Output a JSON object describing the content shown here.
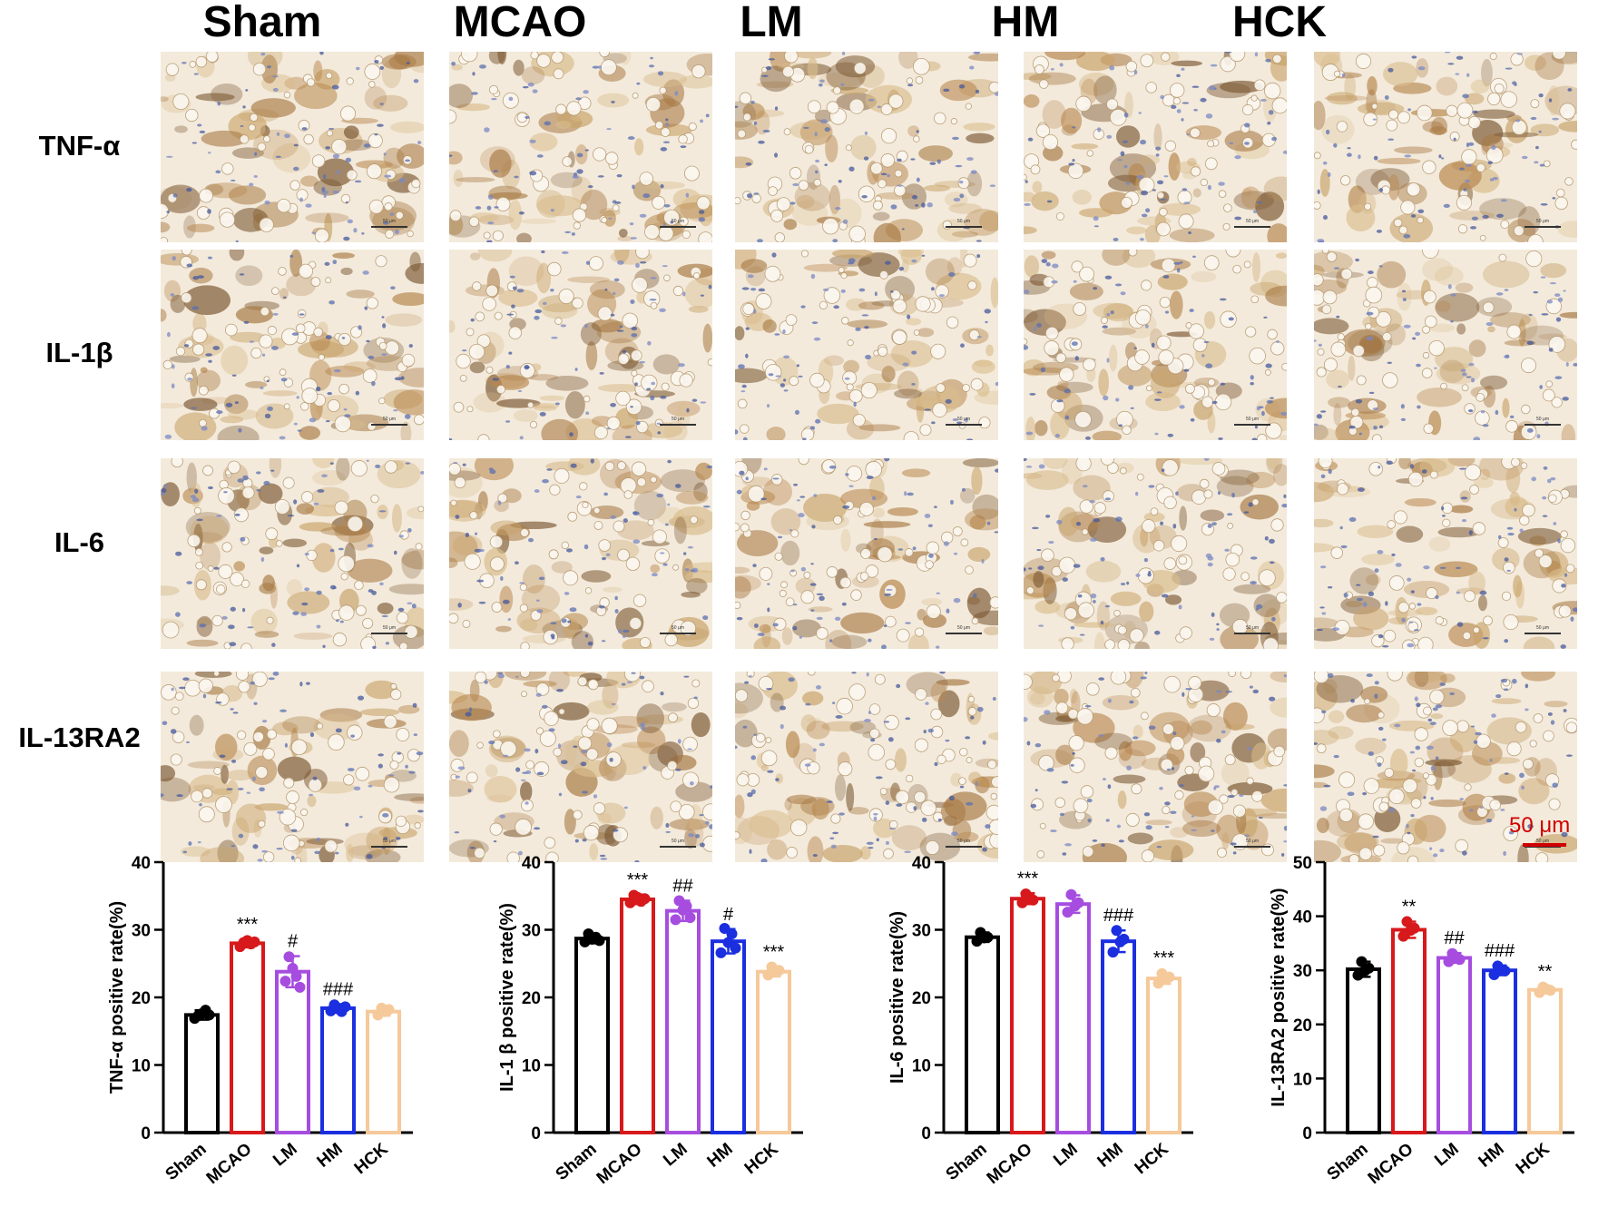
{
  "figure": {
    "groups": [
      "Sham",
      "MCAO",
      "LM",
      "HM",
      "HCK"
    ],
    "markers": [
      "TNF-α",
      "IL-1β",
      "IL-6",
      "IL-13RA2"
    ],
    "panel_scale_text": "50 μm",
    "scale_bar_label": "50 μm",
    "colors": {
      "Sham": "#000000",
      "MCAO": "#d7191c",
      "LM": "#a64de0",
      "HM": "#1b2fe0",
      "HCK": "#f5c99a",
      "scale_bar": "#d00000"
    }
  },
  "chart_data": [
    {
      "type": "bar",
      "categories": [
        "Sham",
        "MCAO",
        "LM",
        "HM",
        "HCK"
      ],
      "values": [
        17.4,
        28.0,
        23.8,
        18.4,
        17.9
      ],
      "errors": [
        0.7,
        0.6,
        2.3,
        0.6,
        0.6
      ],
      "points": [
        [
          16.9,
          17.3,
          17.6,
          18.1,
          17.4
        ],
        [
          27.5,
          28.1,
          28.4,
          27.9,
          28.2
        ],
        [
          22.4,
          26.0,
          24.3,
          23.1,
          21.5
        ],
        [
          18.0,
          18.9,
          18.3,
          17.9,
          18.6
        ],
        [
          17.4,
          18.4,
          17.9,
          18.2
        ]
      ],
      "significance": [
        "",
        "***",
        "#",
        "###",
        ""
      ],
      "ylabel": "TNF-α positive rate(%)",
      "ylim": [
        0,
        40
      ],
      "yticks": [
        0,
        10,
        20,
        30,
        40
      ]
    },
    {
      "type": "bar",
      "categories": [
        "Sham",
        "MCAO",
        "LM",
        "HM",
        "HCK"
      ],
      "values": [
        28.7,
        34.5,
        32.8,
        28.3,
        23.8
      ],
      "errors": [
        0.7,
        0.7,
        1.5,
        1.8,
        0.7
      ],
      "points": [
        [
          28.2,
          29.4,
          28.6,
          28.9,
          28.4
        ],
        [
          34.0,
          35.1,
          34.8,
          34.2,
          34.6
        ],
        [
          31.5,
          34.3,
          32.9,
          33.5,
          31.8
        ],
        [
          26.6,
          30.2,
          28.1,
          29.4,
          27.3
        ],
        [
          23.3,
          24.5,
          23.8,
          24.0
        ]
      ],
      "significance": [
        "",
        "***",
        "##",
        "#",
        "***"
      ],
      "ylabel": "IL-1 β positive rate(%)",
      "ylim": [
        0,
        40
      ],
      "yticks": [
        0,
        10,
        20,
        30,
        40
      ]
    },
    {
      "type": "bar",
      "categories": [
        "Sham",
        "MCAO",
        "LM",
        "HM",
        "HCK"
      ],
      "values": [
        28.9,
        34.6,
        33.8,
        28.3,
        22.8
      ],
      "errors": [
        0.7,
        0.8,
        1.3,
        1.6,
        0.8
      ],
      "points": [
        [
          28.3,
          29.6,
          28.8,
          28.9
        ],
        [
          34.0,
          35.3,
          34.8,
          34.4
        ],
        [
          32.6,
          35.2,
          33.5,
          34.0
        ],
        [
          26.7,
          29.9,
          28.2,
          28.6
        ],
        [
          22.1,
          23.5,
          22.7,
          23.0
        ]
      ],
      "significance": [
        "",
        "***",
        "",
        "###",
        "***"
      ],
      "ylabel": "IL-6 positive rate(%)",
      "ylim": [
        0,
        40
      ],
      "yticks": [
        0,
        10,
        20,
        30,
        40
      ]
    },
    {
      "type": "bar",
      "categories": [
        "Sham",
        "MCAO",
        "LM",
        "HM",
        "HCK"
      ],
      "values": [
        30.2,
        37.5,
        32.3,
        30.0,
        26.4
      ],
      "errors": [
        1.4,
        1.5,
        0.9,
        0.9,
        0.6
      ],
      "points": [
        [
          29.1,
          31.6,
          30.0,
          30.4
        ],
        [
          36.3,
          39.0,
          37.4,
          37.8
        ],
        [
          31.6,
          33.1,
          32.4,
          32.0
        ],
        [
          29.2,
          30.8,
          30.1,
          29.9
        ],
        [
          25.9,
          26.9,
          26.5,
          26.3
        ]
      ],
      "significance": [
        "",
        "**",
        "##",
        "###",
        "**"
      ],
      "ylabel": "IL-13RA2 positive rate(%)",
      "ylim": [
        0,
        50
      ],
      "yticks": [
        0,
        10,
        20,
        30,
        40,
        50
      ]
    }
  ]
}
